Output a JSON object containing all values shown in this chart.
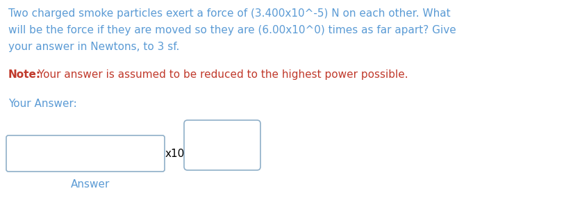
{
  "title_line1": "Two charged smoke particles exert a force of (3.400x10^-5) N on each other. What",
  "title_line2": "will be the force if they are moved so they are (6.00x10^0) times as far apart? Give",
  "title_line3": "your answer in Newtons, to 3 sf.",
  "note_bold": "Note:",
  "note_rest": " Your answer is assumed to be reduced to the highest power possible.",
  "your_answer_label": "Your Answer:",
  "x10_label": "x10",
  "answer_label": "Answer",
  "text_color": "#5b9bd5",
  "note_color": "#c0392b",
  "bg_color": "#ffffff",
  "box_edge_color": "#8fafc8",
  "text_fontsize": 11.0,
  "note_fontsize": 11.0
}
